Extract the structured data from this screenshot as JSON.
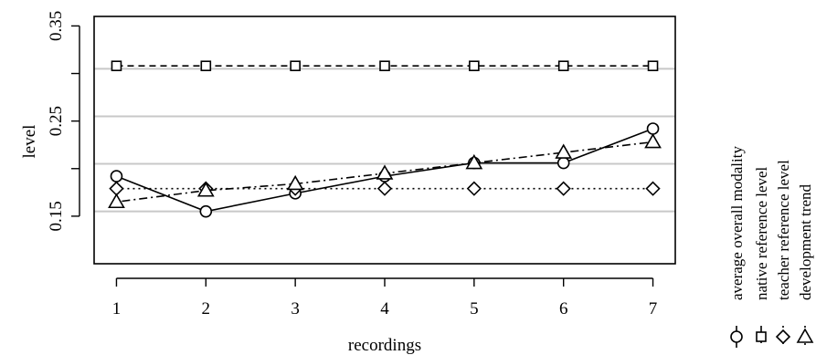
{
  "chart_data": {
    "type": "line",
    "xlabel": "recordings",
    "ylabel": "level",
    "x": [
      1,
      2,
      3,
      4,
      5,
      6,
      7
    ],
    "xlim": [
      0.75,
      7.25
    ],
    "ylim": [
      0.1,
      0.36
    ],
    "x_ticks": [
      "1",
      "2",
      "3",
      "4",
      "5",
      "6",
      "7"
    ],
    "y_ticks": [
      {
        "value": 0.15,
        "label": "0.15"
      },
      {
        "value": 0.25,
        "label": "0.25"
      },
      {
        "value": 0.35,
        "label": "0.35"
      }
    ],
    "gridlines_y": [
      0.155,
      0.205,
      0.255,
      0.305
    ],
    "grid": "horizontal",
    "legend_position": "right (vertical, rotated)",
    "series": [
      {
        "name": "average overall modality",
        "marker": "circle",
        "line": "solid",
        "values": [
          0.192,
          0.155,
          0.174,
          0.192,
          0.206,
          0.206,
          0.242
        ]
      },
      {
        "name": "native reference level",
        "marker": "square",
        "line": "dashed",
        "values": [
          0.308,
          0.308,
          0.308,
          0.308,
          0.308,
          0.308,
          0.308
        ]
      },
      {
        "name": "teacher reference level",
        "marker": "diamond",
        "line": "dotted",
        "values": [
          0.179,
          0.179,
          0.179,
          0.179,
          0.179,
          0.179,
          0.179
        ]
      },
      {
        "name": "development trend",
        "marker": "triangle",
        "line": "dotdash",
        "values": [
          0.165,
          0.177,
          0.184,
          0.195,
          0.206,
          0.217,
          0.228
        ]
      }
    ]
  },
  "colors": {
    "ink": "#000000",
    "grid": "#c8c8c8",
    "background": "#ffffff"
  }
}
